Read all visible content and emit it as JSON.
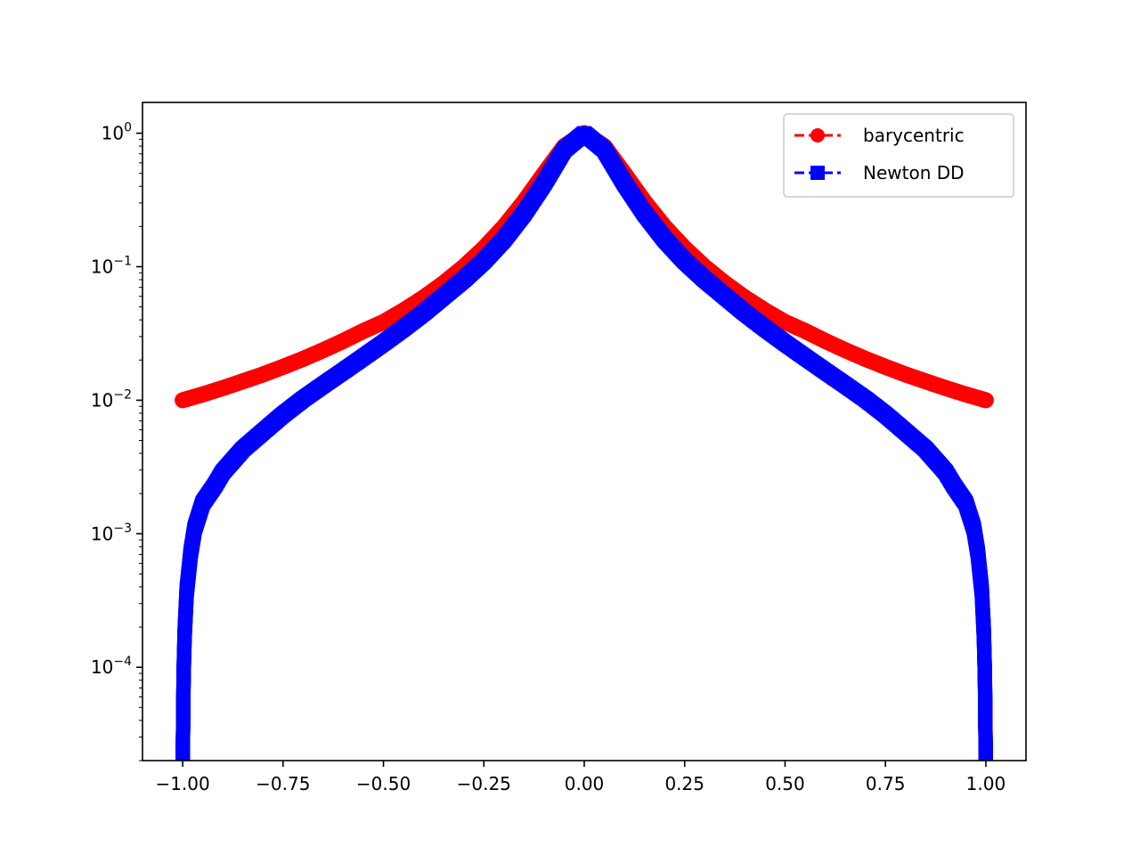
{
  "chart_data": {
    "type": "line",
    "title": "",
    "xlabel": "",
    "ylabel": "",
    "xlim": [
      -1.1,
      1.1
    ],
    "ylim": [
      2e-05,
      1.7
    ],
    "yscale": "log",
    "grid": false,
    "legend_position": "top-right",
    "x_ticks": [
      -1.0,
      -0.75,
      -0.5,
      -0.25,
      0.0,
      0.25,
      0.5,
      0.75,
      1.0
    ],
    "x_tick_labels": [
      "−1.00",
      "−0.75",
      "−0.50",
      "−0.25",
      "0.00",
      "0.25",
      "0.50",
      "0.75",
      "1.00"
    ],
    "y_ticks": [
      {
        "value": 1,
        "base": "10",
        "exp": "0"
      },
      {
        "value": 0.1,
        "base": "10",
        "exp": "−1"
      },
      {
        "value": 0.01,
        "base": "10",
        "exp": "−2"
      },
      {
        "value": 0.001,
        "base": "10",
        "exp": "−3"
      },
      {
        "value": 0.0001,
        "base": "10",
        "exp": "−4"
      }
    ],
    "series": [
      {
        "name": "barycentric",
        "color": "#ff0000",
        "marker": "circle",
        "linestyle": "dashed",
        "x": [
          -1.0,
          -0.95,
          -0.9,
          -0.85,
          -0.8,
          -0.75,
          -0.7,
          -0.65,
          -0.6,
          -0.55,
          -0.5,
          -0.45,
          -0.4,
          -0.35,
          -0.3,
          -0.25,
          -0.2,
          -0.15,
          -0.1,
          -0.05,
          0.0,
          0.05,
          0.1,
          0.15,
          0.2,
          0.25,
          0.3,
          0.35,
          0.4,
          0.45,
          0.5,
          0.55,
          0.6,
          0.65,
          0.7,
          0.75,
          0.8,
          0.85,
          0.9,
          0.95,
          1.0
        ],
        "y": [
          0.01,
          0.01106,
          0.01233,
          0.01385,
          0.0156,
          0.01778,
          0.0204,
          0.0237,
          0.0278,
          0.033,
          0.0385,
          0.0471,
          0.0588,
          0.0755,
          0.1,
          0.138,
          0.2,
          0.308,
          0.5,
          0.8,
          1.0,
          0.8,
          0.5,
          0.308,
          0.2,
          0.138,
          0.1,
          0.0755,
          0.0588,
          0.0471,
          0.0385,
          0.033,
          0.0278,
          0.0237,
          0.0204,
          0.01778,
          0.0156,
          0.01385,
          0.01233,
          0.01106,
          0.01
        ]
      },
      {
        "name": "Newton DD",
        "color": "#0000ff",
        "marker": "square",
        "linestyle": "dashed",
        "x": [
          -1.0,
          -0.999,
          -0.998,
          -0.997,
          -0.995,
          -0.99,
          -0.98,
          -0.97,
          -0.95,
          -0.92,
          -0.9,
          -0.85,
          -0.8,
          -0.75,
          -0.7,
          -0.65,
          -0.6,
          -0.55,
          -0.5,
          -0.45,
          -0.4,
          -0.35,
          -0.3,
          -0.25,
          -0.2,
          -0.15,
          -0.1,
          -0.05,
          0.0,
          0.05,
          0.1,
          0.15,
          0.2,
          0.25,
          0.3,
          0.35,
          0.4,
          0.45,
          0.5,
          0.55,
          0.6,
          0.65,
          0.7,
          0.75,
          0.8,
          0.85,
          0.9,
          0.92,
          0.95,
          0.97,
          0.98,
          0.99,
          0.995,
          0.997,
          0.998,
          0.999,
          1.0
        ],
        "y": [
          1.8e-05,
          3.4e-05,
          7e-05,
          0.000105,
          0.00018,
          0.00037,
          0.00072,
          0.0011,
          0.0017,
          0.0023,
          0.0029,
          0.0043,
          0.0058,
          0.0078,
          0.0102,
          0.013,
          0.0165,
          0.021,
          0.0268,
          0.0345,
          0.045,
          0.06,
          0.08,
          0.11,
          0.16,
          0.25,
          0.42,
          0.75,
          1.0,
          0.75,
          0.42,
          0.25,
          0.16,
          0.11,
          0.08,
          0.06,
          0.045,
          0.0345,
          0.0268,
          0.021,
          0.0165,
          0.013,
          0.0102,
          0.0078,
          0.0058,
          0.0043,
          0.0029,
          0.0023,
          0.0017,
          0.0011,
          0.00072,
          0.00037,
          0.00018,
          0.000105,
          7e-05,
          3.4e-05,
          1.8e-05
        ]
      }
    ]
  }
}
